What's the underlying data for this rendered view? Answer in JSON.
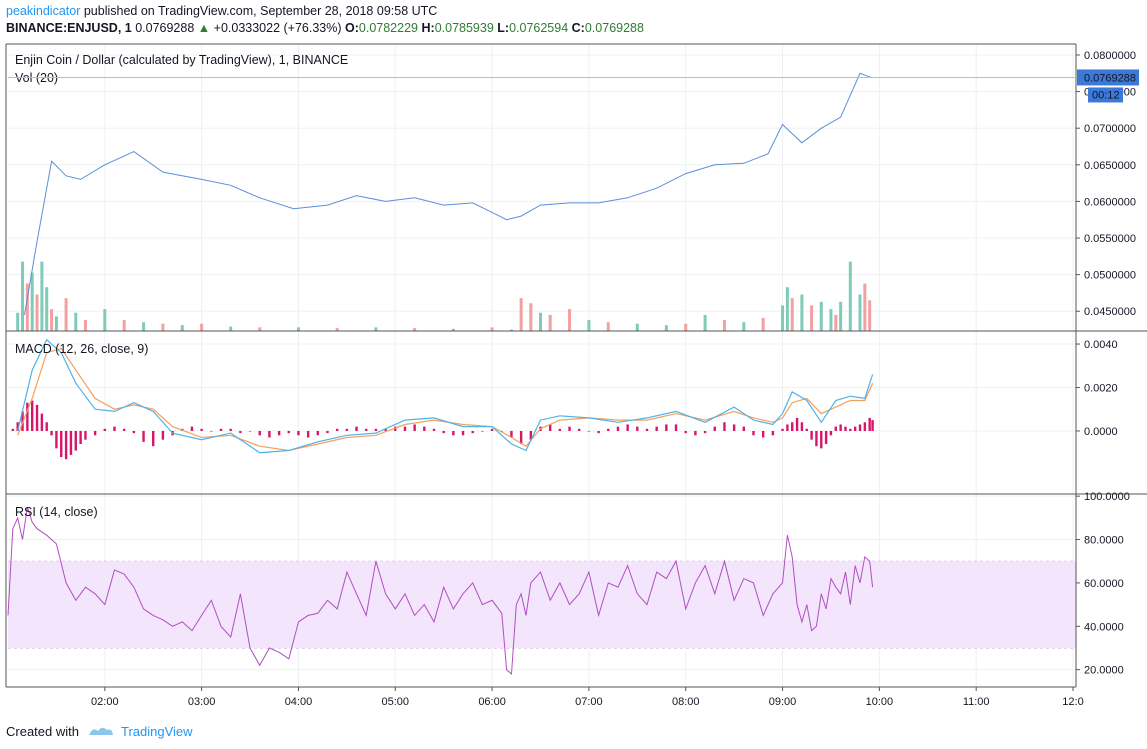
{
  "header": {
    "author": "peakindicator",
    "published_text": "published on TradingView.com, September 28, 2018 09:58 UTC",
    "symbol_line": "BINANCE:ENJUSD, 1",
    "last_price": "0.0769288",
    "change": "+0.0333022 (+76.33%)",
    "o_label": "O:",
    "o_value": "0.0782229",
    "h_label": "H:",
    "h_value": "0.0785939",
    "l_label": "L:",
    "l_value": "0.0762594",
    "c_label": "C:",
    "c_value": "0.0769288"
  },
  "footer": {
    "created_with": "Created with",
    "brand": "TradingView"
  },
  "colors": {
    "price_line": "#5b8fd8",
    "vol_up": "#7fcbb9",
    "vol_down": "#f2a0a0",
    "macd": "#4fb3e8",
    "signal": "#f5a05a",
    "hist": "#d6156c",
    "rsi": "#b04fc2",
    "rsi_band": "#f3e5fb",
    "last_price_tag": "#3c78d8"
  },
  "chart_data": [
    {
      "type": "line",
      "title": "Enjin Coin / Dollar (calculated by TradingView), 1, BINANCE",
      "subtitle": "Vol (20)",
      "x_ticks": [
        "02:00",
        "03:00",
        "04:00",
        "05:00",
        "06:00",
        "07:00",
        "08:00",
        "09:00",
        "10:00",
        "11:00",
        "12:0"
      ],
      "y_ticks": [
        "0.0800000",
        "0.0750000",
        "0.0700000",
        "0.0650000",
        "0.0600000",
        "0.0550000",
        "0.0500000",
        "0.0450000"
      ],
      "ylim": [
        0.0423,
        0.0815
      ],
      "last_price_label": "0.0769288",
      "countdown_label": "00:12",
      "series": [
        {
          "name": "ENJUSD",
          "x": [
            1.17,
            1.3,
            1.45,
            1.6,
            1.75,
            2.0,
            2.3,
            2.6,
            3.0,
            3.3,
            3.6,
            3.95,
            4.3,
            4.6,
            4.9,
            5.2,
            5.5,
            5.8,
            6.0,
            6.15,
            6.3,
            6.5,
            6.8,
            7.1,
            7.4,
            7.7,
            8.0,
            8.3,
            8.6,
            8.85,
            9.0,
            9.2,
            9.4,
            9.6,
            9.8,
            9.92
          ],
          "y": [
            0.0445,
            0.0545,
            0.0655,
            0.0635,
            0.063,
            0.065,
            0.0668,
            0.064,
            0.063,
            0.0622,
            0.0605,
            0.059,
            0.0595,
            0.0608,
            0.06,
            0.0605,
            0.0595,
            0.0598,
            0.0585,
            0.0575,
            0.058,
            0.0595,
            0.0598,
            0.0598,
            0.0605,
            0.0618,
            0.0638,
            0.065,
            0.0652,
            0.0665,
            0.0705,
            0.068,
            0.07,
            0.0715,
            0.0775,
            0.0769
          ]
        }
      ],
      "volume": {
        "ylim": [
          0,
          1
        ],
        "x": [
          1.1,
          1.15,
          1.2,
          1.25,
          1.3,
          1.35,
          1.4,
          1.45,
          1.5,
          1.6,
          1.7,
          1.8,
          2.0,
          2.2,
          2.4,
          2.6,
          2.8,
          3.0,
          3.3,
          3.6,
          4.0,
          4.4,
          4.8,
          5.2,
          5.6,
          6.0,
          6.2,
          6.3,
          6.4,
          6.5,
          6.6,
          6.8,
          7.0,
          7.2,
          7.5,
          7.8,
          8.0,
          8.2,
          8.4,
          8.6,
          8.8,
          9.0,
          9.05,
          9.1,
          9.2,
          9.3,
          9.4,
          9.5,
          9.55,
          9.6,
          9.7,
          9.8,
          9.85,
          9.9
        ],
        "values": [
          0.25,
          0.95,
          0.65,
          0.8,
          0.5,
          0.95,
          0.6,
          0.3,
          0.2,
          0.45,
          0.25,
          0.15,
          0.3,
          0.15,
          0.12,
          0.1,
          0.08,
          0.1,
          0.06,
          0.05,
          0.05,
          0.04,
          0.05,
          0.04,
          0.03,
          0.05,
          0.02,
          0.45,
          0.38,
          0.25,
          0.22,
          0.3,
          0.15,
          0.12,
          0.1,
          0.08,
          0.1,
          0.22,
          0.15,
          0.12,
          0.18,
          0.35,
          0.6,
          0.45,
          0.5,
          0.35,
          0.4,
          0.3,
          0.22,
          0.4,
          0.95,
          0.5,
          0.65,
          0.42
        ],
        "up": [
          true,
          true,
          false,
          true,
          false,
          true,
          true,
          false,
          true,
          false,
          true,
          false,
          true,
          false,
          true,
          false,
          true,
          false,
          true,
          false,
          true,
          false,
          true,
          false,
          true,
          false,
          true,
          false,
          false,
          true,
          false,
          false,
          true,
          false,
          true,
          true,
          false,
          true,
          false,
          true,
          false,
          true,
          true,
          false,
          true,
          false,
          true,
          true,
          false,
          true,
          true,
          true,
          false,
          false
        ]
      }
    },
    {
      "type": "line",
      "title": "MACD (12, 26, close, 9)",
      "y_ticks": [
        "0.0040",
        "0.0020",
        "0.0000"
      ],
      "ylim": [
        -0.0029,
        0.0046
      ],
      "x": [
        1.1,
        1.25,
        1.4,
        1.55,
        1.7,
        1.9,
        2.1,
        2.3,
        2.5,
        2.7,
        3.0,
        3.3,
        3.6,
        3.9,
        4.2,
        4.5,
        4.8,
        5.1,
        5.4,
        5.7,
        6.0,
        6.2,
        6.35,
        6.5,
        6.7,
        7.0,
        7.3,
        7.6,
        7.9,
        8.2,
        8.5,
        8.7,
        8.9,
        9.0,
        9.1,
        9.25,
        9.4,
        9.55,
        9.7,
        9.85,
        9.93
      ],
      "series": [
        {
          "name": "MACD",
          "values": [
            0.0,
            0.0028,
            0.0042,
            0.0036,
            0.0022,
            0.001,
            0.0009,
            0.0013,
            0.0009,
            -0.0001,
            -0.0004,
            -0.0001,
            -0.001,
            -0.0009,
            -0.0005,
            -0.0002,
            -0.0001,
            0.0005,
            0.0006,
            0.0002,
            0.0002,
            -0.0006,
            -0.0009,
            0.0005,
            0.0007,
            0.0006,
            0.0004,
            0.0006,
            0.0009,
            0.0004,
            0.0011,
            0.0005,
            0.0003,
            0.0008,
            0.0018,
            0.0014,
            0.0004,
            0.0014,
            0.0016,
            0.0015,
            0.0026
          ]
        },
        {
          "name": "Signal",
          "values": [
            -0.0002,
            0.0015,
            0.0036,
            0.0038,
            0.0028,
            0.0015,
            0.001,
            0.0012,
            0.001,
            0.0002,
            -0.0003,
            -0.0002,
            -0.0007,
            -0.0009,
            -0.0006,
            -0.0003,
            -0.0002,
            0.0003,
            0.0005,
            0.0003,
            0.0002,
            -0.0003,
            -0.0007,
            0.0001,
            0.0005,
            0.0006,
            0.0005,
            0.0005,
            0.0008,
            0.0005,
            0.0009,
            0.0006,
            0.0004,
            0.0006,
            0.0013,
            0.0015,
            0.0008,
            0.0011,
            0.0014,
            0.0014,
            0.0022
          ]
        }
      ],
      "histogram": {
        "x": [
          1.05,
          1.1,
          1.15,
          1.2,
          1.25,
          1.3,
          1.35,
          1.4,
          1.45,
          1.5,
          1.55,
          1.6,
          1.65,
          1.7,
          1.75,
          1.8,
          1.9,
          2.0,
          2.1,
          2.2,
          2.3,
          2.4,
          2.5,
          2.6,
          2.7,
          2.8,
          2.9,
          3.0,
          3.1,
          3.2,
          3.3,
          3.4,
          3.5,
          3.6,
          3.7,
          3.8,
          3.9,
          4.0,
          4.1,
          4.2,
          4.3,
          4.4,
          4.5,
          4.6,
          4.7,
          4.8,
          4.9,
          5.0,
          5.1,
          5.2,
          5.3,
          5.4,
          5.5,
          5.6,
          5.7,
          5.8,
          5.9,
          6.0,
          6.1,
          6.2,
          6.3,
          6.4,
          6.5,
          6.6,
          6.7,
          6.8,
          6.9,
          7.0,
          7.1,
          7.2,
          7.3,
          7.4,
          7.5,
          7.6,
          7.7,
          7.8,
          7.9,
          8.0,
          8.1,
          8.2,
          8.3,
          8.4,
          8.5,
          8.6,
          8.7,
          8.8,
          8.9,
          9.0,
          9.05,
          9.1,
          9.15,
          9.2,
          9.25,
          9.3,
          9.35,
          9.4,
          9.45,
          9.5,
          9.55,
          9.6,
          9.65,
          9.7,
          9.75,
          9.8,
          9.85,
          9.9,
          9.93
        ],
        "values": [
          0.0001,
          0.0004,
          0.0009,
          0.0013,
          0.0014,
          0.0012,
          0.0008,
          0.0004,
          -0.0002,
          -0.0008,
          -0.0012,
          -0.0013,
          -0.0011,
          -0.0009,
          -0.0006,
          -0.0004,
          -0.0002,
          0.0001,
          0.0002,
          0.0001,
          -0.0001,
          -0.0005,
          -0.0007,
          -0.0004,
          -0.0002,
          0.0001,
          0.0002,
          0.0001,
          0.0,
          0.0001,
          0.0001,
          -0.0001,
          0.0,
          -0.0002,
          -0.0003,
          -0.0002,
          -0.0001,
          -0.0002,
          -0.0003,
          -0.0002,
          -0.0001,
          0.0001,
          0.0001,
          0.0002,
          0.0001,
          0.0001,
          0.0001,
          0.0002,
          0.0002,
          0.0003,
          0.0002,
          0.0001,
          -0.0001,
          -0.0002,
          -0.0002,
          -0.0001,
          0.0,
          0.0001,
          0.0,
          -0.0003,
          -0.0006,
          -0.0004,
          0.0002,
          0.0003,
          0.0001,
          0.0002,
          0.0001,
          0.0,
          -0.0001,
          0.0001,
          0.0002,
          0.0003,
          0.0002,
          0.0001,
          0.0002,
          0.0003,
          0.0003,
          -0.0001,
          -0.0002,
          -0.0001,
          0.0002,
          0.0004,
          0.0003,
          0.0002,
          -0.0002,
          -0.0003,
          -0.0002,
          0.0001,
          0.0003,
          0.0004,
          0.0006,
          0.0004,
          0.0001,
          -0.0004,
          -0.0007,
          -0.0008,
          -0.0006,
          -0.0002,
          0.0002,
          0.0003,
          0.0002,
          0.0001,
          0.0002,
          0.0003,
          0.0004,
          0.0006,
          0.0005
        ]
      }
    },
    {
      "type": "line",
      "title": "RSI (14, close)",
      "y_ticks": [
        "100.0000",
        "80.0000",
        "60.0000",
        "40.0000",
        "20.0000"
      ],
      "ylim": [
        12,
        101
      ],
      "band": [
        30,
        70
      ],
      "series": [
        {
          "name": "RSI",
          "x": [
            1.0,
            1.05,
            1.1,
            1.15,
            1.2,
            1.25,
            1.3,
            1.4,
            1.5,
            1.6,
            1.7,
            1.8,
            1.9,
            2.0,
            2.1,
            2.2,
            2.3,
            2.4,
            2.5,
            2.6,
            2.7,
            2.8,
            2.9,
            3.0,
            3.1,
            3.2,
            3.3,
            3.4,
            3.5,
            3.6,
            3.7,
            3.8,
            3.9,
            4.0,
            4.1,
            4.2,
            4.3,
            4.4,
            4.5,
            4.6,
            4.7,
            4.8,
            4.9,
            5.0,
            5.1,
            5.2,
            5.3,
            5.4,
            5.5,
            5.6,
            5.7,
            5.8,
            5.9,
            6.0,
            6.1,
            6.15,
            6.2,
            6.25,
            6.3,
            6.35,
            6.4,
            6.5,
            6.6,
            6.7,
            6.8,
            6.9,
            7.0,
            7.1,
            7.2,
            7.3,
            7.4,
            7.5,
            7.6,
            7.7,
            7.8,
            7.9,
            8.0,
            8.1,
            8.2,
            8.3,
            8.4,
            8.5,
            8.6,
            8.7,
            8.8,
            8.9,
            9.0,
            9.05,
            9.1,
            9.15,
            9.2,
            9.25,
            9.3,
            9.35,
            9.4,
            9.45,
            9.5,
            9.55,
            9.6,
            9.65,
            9.7,
            9.75,
            9.8,
            9.85,
            9.9,
            9.93
          ],
          "values": [
            45,
            85,
            90,
            80,
            95,
            88,
            85,
            82,
            78,
            60,
            52,
            58,
            55,
            50,
            66,
            64,
            58,
            48,
            45,
            43,
            40,
            42,
            38,
            45,
            52,
            40,
            35,
            55,
            30,
            22,
            30,
            28,
            25,
            42,
            45,
            46,
            52,
            48,
            65,
            55,
            45,
            70,
            55,
            48,
            55,
            45,
            50,
            42,
            58,
            48,
            55,
            60,
            50,
            52,
            46,
            20,
            18,
            50,
            55,
            45,
            60,
            65,
            52,
            60,
            50,
            55,
            65,
            45,
            60,
            58,
            68,
            55,
            50,
            65,
            62,
            70,
            48,
            60,
            68,
            55,
            70,
            52,
            62,
            60,
            45,
            55,
            60,
            82,
            72,
            50,
            42,
            50,
            38,
            40,
            55,
            48,
            62,
            58,
            55,
            65,
            50,
            68,
            60,
            72,
            70,
            58
          ]
        }
      ]
    }
  ]
}
